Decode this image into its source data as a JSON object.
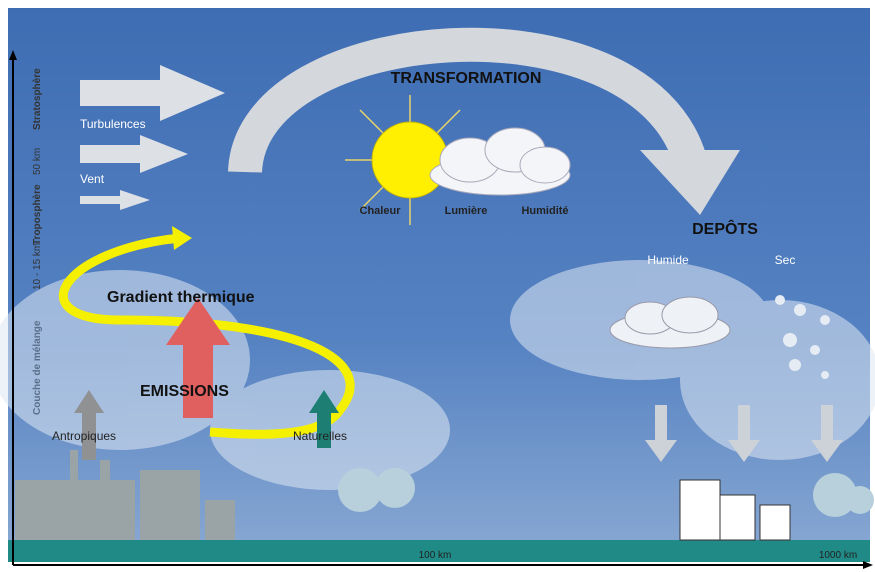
{
  "transformation": {
    "title": "TRANSFORMATION",
    "factors": [
      "Chaleur",
      "Lumière",
      "Humidité"
    ]
  },
  "deposits": {
    "title": "DEPÔTS",
    "types": [
      "Humide",
      "Sec"
    ]
  },
  "winds": [
    "Turbulences",
    "Vent"
  ],
  "gradient": "Gradient thermique",
  "emissions": {
    "title": "EMISSIONS",
    "sources": [
      "Antropiques",
      "Naturelles"
    ]
  },
  "altitude": [
    "Stratosphère",
    "50 km",
    "Troposphère",
    "10 - 15 km",
    "Couche de mélange"
  ],
  "distance": [
    "100 km",
    "1000 km"
  ]
}
